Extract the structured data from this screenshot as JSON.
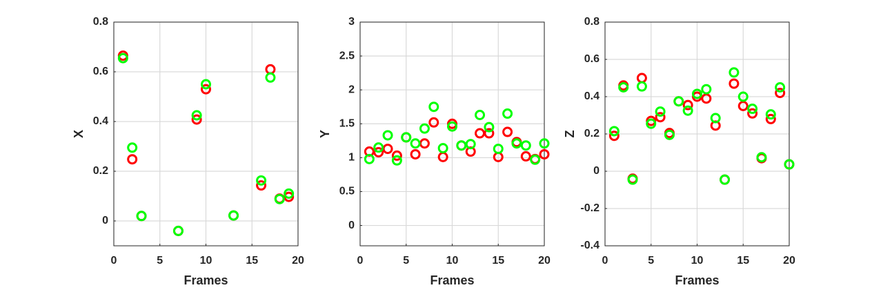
{
  "chart_data": [
    {
      "type": "scatter",
      "x_label": "Frames",
      "y_label": "X",
      "x": [
        1,
        2,
        3,
        7,
        9,
        10,
        13,
        16,
        17,
        18,
        19
      ],
      "series": [
        {
          "color": "#ff0000",
          "values": [
            0.665,
            0.248,
            0.02,
            -0.04,
            0.408,
            0.53,
            0.022,
            0.143,
            0.61,
            0.09,
            0.097
          ]
        },
        {
          "color": "#00ff00",
          "values": [
            0.655,
            0.295,
            0.02,
            -0.04,
            0.425,
            0.55,
            0.022,
            0.163,
            0.577,
            0.088,
            0.11
          ]
        }
      ],
      "xlim": [
        0,
        20
      ],
      "xticks": [
        0,
        5,
        10,
        15,
        20
      ],
      "ylim": [
        -0.1,
        0.8
      ],
      "yticks": [
        0,
        0.2,
        0.4,
        0.6,
        0.8
      ],
      "grid": true
    },
    {
      "type": "scatter",
      "x_label": "Frames",
      "y_label": "Y",
      "x": [
        1,
        2,
        3,
        4,
        5,
        6,
        7,
        8,
        9,
        10,
        11,
        12,
        13,
        14,
        15,
        16,
        17,
        18,
        19,
        20
      ],
      "series": [
        {
          "color": "#ff0000",
          "values": [
            1.09,
            1.08,
            1.13,
            1.03,
            1.3,
            1.05,
            1.21,
            1.52,
            1.01,
            1.5,
            1.18,
            1.09,
            1.36,
            1.36,
            1.01,
            1.38,
            1.23,
            1.02,
            0.98,
            1.05
          ]
        },
        {
          "color": "#00ff00",
          "values": [
            0.98,
            1.15,
            1.33,
            0.96,
            1.3,
            1.21,
            1.43,
            1.75,
            1.14,
            1.46,
            1.18,
            1.2,
            1.63,
            1.45,
            1.13,
            1.65,
            1.21,
            1.18,
            0.97,
            1.21
          ]
        }
      ],
      "xlim": [
        0,
        20
      ],
      "xticks": [
        0,
        5,
        10,
        15,
        20
      ],
      "ylim": [
        -0.3,
        3
      ],
      "yticks": [
        0,
        0.5,
        1,
        1.5,
        2,
        2.5,
        3
      ],
      "grid": true
    },
    {
      "type": "scatter",
      "x_label": "Frames",
      "y_label": "Z",
      "x": [
        1,
        2,
        3,
        4,
        5,
        6,
        7,
        8,
        9,
        10,
        11,
        12,
        13,
        14,
        15,
        16,
        17,
        18,
        19,
        20
      ],
      "series": [
        {
          "color": "#ff0000",
          "values": [
            0.19,
            0.46,
            -0.04,
            0.5,
            0.27,
            0.29,
            0.205,
            0.375,
            0.355,
            0.4,
            0.39,
            0.245,
            -0.045,
            0.47,
            0.35,
            0.31,
            0.07,
            0.28,
            0.42,
            0.037
          ]
        },
        {
          "color": "#00ff00",
          "values": [
            0.215,
            0.45,
            -0.045,
            0.455,
            0.255,
            0.32,
            0.195,
            0.375,
            0.325,
            0.415,
            0.44,
            0.285,
            -0.045,
            0.53,
            0.4,
            0.335,
            0.075,
            0.305,
            0.45,
            0.037
          ]
        }
      ],
      "xlim": [
        0,
        20
      ],
      "xticks": [
        0,
        5,
        10,
        15,
        20
      ],
      "ylim": [
        -0.4,
        0.8
      ],
      "yticks": [
        -0.4,
        -0.2,
        0,
        0.2,
        0.4,
        0.6,
        0.8
      ],
      "grid": true
    }
  ]
}
